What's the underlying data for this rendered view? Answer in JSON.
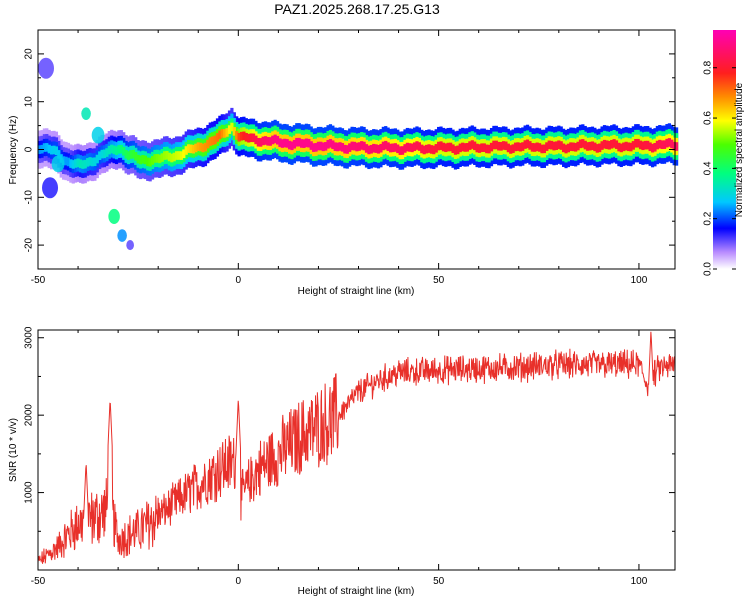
{
  "title": "PAZ1.2025.268.17.25.G13",
  "chart_data": [
    {
      "type": "heatmap",
      "xlabel": "Height of straight line (km)",
      "ylabel": "Frequency (Hz)",
      "xlim": [
        -50,
        109
      ],
      "ylim": [
        -25,
        25
      ],
      "xticks": [
        -50,
        0,
        50,
        100
      ],
      "yticks": [
        -20,
        -10,
        0,
        10,
        20
      ],
      "xtick_labels": [
        "-50",
        "0",
        "50",
        "100"
      ],
      "ytick_labels": [
        "-20",
        "-10",
        "0",
        "10",
        "20"
      ],
      "ridge": {
        "heights": [
          -50,
          -46,
          -43,
          -40,
          -35,
          -30,
          -28,
          -25,
          -20,
          -15,
          -10,
          -5,
          -2,
          0,
          5,
          10,
          20,
          30,
          40,
          50,
          60,
          70,
          80,
          90,
          100,
          109
        ],
        "frequencies": [
          0.5,
          -0.5,
          -2.5,
          -3.5,
          -1.5,
          0.5,
          -1.0,
          -2.2,
          -2.0,
          -1.0,
          0.5,
          2.5,
          4.8,
          2.5,
          2.0,
          1.5,
          0.8,
          0.4,
          0.3,
          0.3,
          0.5,
          0.6,
          0.6,
          0.8,
          0.8,
          1.0
        ],
        "amplitudes": [
          0.25,
          0.3,
          0.25,
          0.35,
          0.3,
          0.4,
          0.45,
          0.5,
          0.55,
          0.6,
          0.7,
          0.75,
          0.6,
          0.8,
          0.9,
          0.95,
          0.95,
          0.92,
          0.9,
          0.85,
          0.85,
          0.85,
          0.85,
          0.85,
          0.85,
          0.9
        ]
      },
      "colorbar": {
        "label": "Normalized spectral amplitude",
        "range": [
          0,
          0.95
        ],
        "ticks": [
          0.0,
          0.2,
          0.4,
          0.6,
          0.8
        ],
        "tick_labels": [
          "0.0",
          "0.2",
          "0.4",
          "0.6",
          "0.8"
        ]
      }
    },
    {
      "type": "line",
      "xlabel": "Height of straight line (km)",
      "ylabel": "SNR (10 * v/v)",
      "xlim": [
        -50,
        109
      ],
      "ylim": [
        0,
        3100
      ],
      "xticks": [
        -50,
        0,
        50,
        100
      ],
      "yticks": [
        1000,
        2000,
        3000
      ],
      "xtick_labels": [
        "-50",
        "0",
        "50",
        "100"
      ],
      "ytick_labels": [
        "1000",
        "2000",
        "3000"
      ],
      "series": [
        {
          "name": "SNR",
          "color": "#e8302a",
          "envelope": {
            "x": [
              -50,
              -45,
              -40,
              -35,
              -32,
              -30,
              -25,
              -20,
              -15,
              -10,
              -5,
              -1,
              0,
              5,
              10,
              15,
              20,
              25,
              30,
              35,
              40,
              50,
              60,
              70,
              80,
              90,
              100,
              102,
              105,
              109
            ],
            "y": [
              100,
              300,
              600,
              700,
              800,
              400,
              500,
              700,
              900,
              1100,
              1300,
              1400,
              900,
              1300,
              1500,
              1700,
              1850,
              2000,
              2300,
              2450,
              2550,
              2580,
              2600,
              2620,
              2650,
              2650,
              2650,
              2400,
              2600,
              2650
            ]
          },
          "spikes": {
            "x": [
              -32,
              0,
              -38,
              103
            ],
            "y": [
              2220,
              2220,
              1400,
              3100
            ]
          }
        }
      ]
    }
  ]
}
